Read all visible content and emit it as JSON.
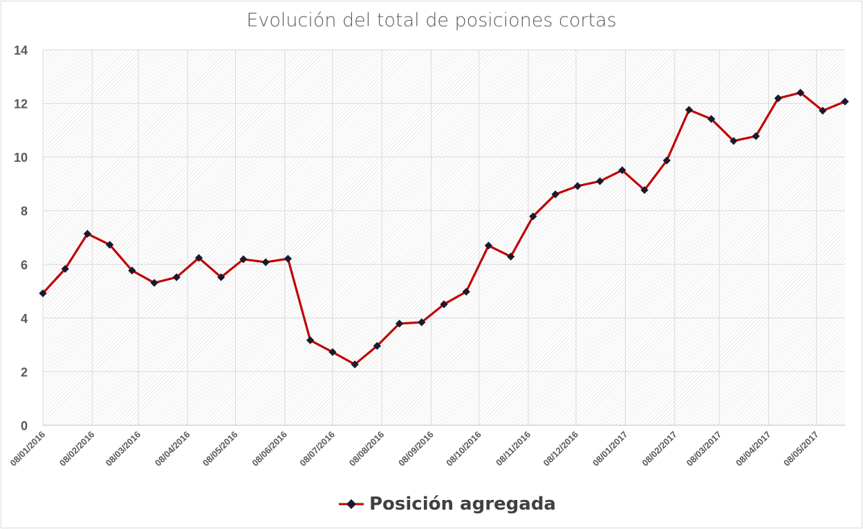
{
  "chart_data": {
    "type": "line",
    "title": "Evolución del total de posiciones cortas",
    "xlabel": "",
    "ylabel": "",
    "ylim": [
      0,
      14
    ],
    "yticks": [
      0,
      2,
      4,
      6,
      8,
      10,
      12,
      14
    ],
    "grid": true,
    "legend_position": "bottom",
    "x_start": "08/01/2016",
    "x_interval_days": 14,
    "x_ticks": [
      "08/01/2016",
      "08/02/2016",
      "08/03/2016",
      "08/04/2016",
      "08/05/2016",
      "08/06/2016",
      "08/07/2016",
      "08/08/2016",
      "08/09/2016",
      "08/10/2016",
      "08/11/2016",
      "08/12/2016",
      "08/01/2017",
      "08/02/2017",
      "08/03/2017",
      "08/04/2017",
      "08/05/2017"
    ],
    "series": [
      {
        "name": "Posición agregada",
        "color": "#c00000",
        "marker_color": "#1a1a2e",
        "values": [
          4.92,
          5.83,
          7.14,
          6.73,
          5.77,
          5.31,
          5.52,
          6.24,
          5.52,
          6.19,
          6.08,
          6.21,
          3.17,
          2.73,
          2.27,
          2.96,
          3.79,
          3.84,
          4.51,
          4.98,
          6.7,
          6.29,
          7.79,
          8.61,
          8.92,
          9.1,
          9.51,
          8.77,
          9.87,
          11.76,
          11.42,
          10.6,
          10.78,
          12.19,
          12.4,
          11.73,
          12.07
        ]
      }
    ]
  }
}
